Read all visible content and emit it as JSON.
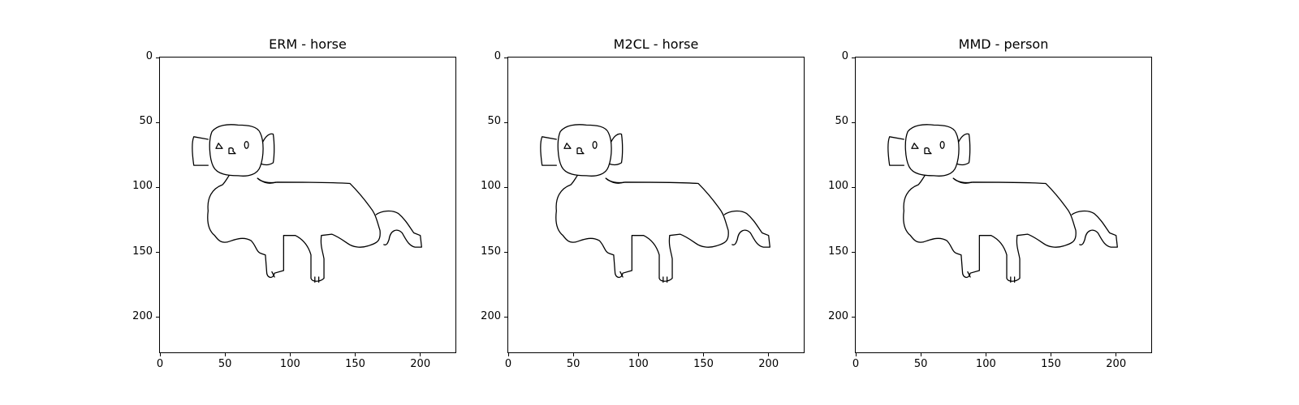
{
  "chart_data": [
    {
      "type": "image",
      "title": "ERM - horse",
      "xlim": [
        0,
        227
      ],
      "ylim": [
        227,
        0
      ],
      "xticks": [
        0,
        50,
        100,
        150,
        200
      ],
      "yticks": [
        0,
        50,
        100,
        150,
        200
      ],
      "xtick_labels": [
        "0",
        "50",
        "100",
        "150",
        "200"
      ],
      "ytick_labels": [
        "0",
        "50",
        "100",
        "150",
        "200"
      ]
    },
    {
      "type": "image",
      "title": "M2CL - horse",
      "xlim": [
        0,
        227
      ],
      "ylim": [
        227,
        0
      ],
      "xticks": [
        0,
        50,
        100,
        150,
        200
      ],
      "yticks": [
        0,
        50,
        100,
        150,
        200
      ],
      "xtick_labels": [
        "0",
        "50",
        "100",
        "150",
        "200"
      ],
      "ytick_labels": [
        "0",
        "50",
        "100",
        "150",
        "200"
      ]
    },
    {
      "type": "image",
      "title": "MMD - person",
      "xlim": [
        0,
        227
      ],
      "ylim": [
        227,
        0
      ],
      "xticks": [
        0,
        50,
        100,
        150,
        200
      ],
      "yticks": [
        0,
        50,
        100,
        150,
        200
      ],
      "xtick_labels": [
        "0",
        "50",
        "100",
        "150",
        "200"
      ],
      "ytick_labels": [
        "0",
        "50",
        "100",
        "150",
        "200"
      ]
    }
  ],
  "drawing": {
    "stroke_color": "#000000",
    "background_color": "#ffffff"
  }
}
